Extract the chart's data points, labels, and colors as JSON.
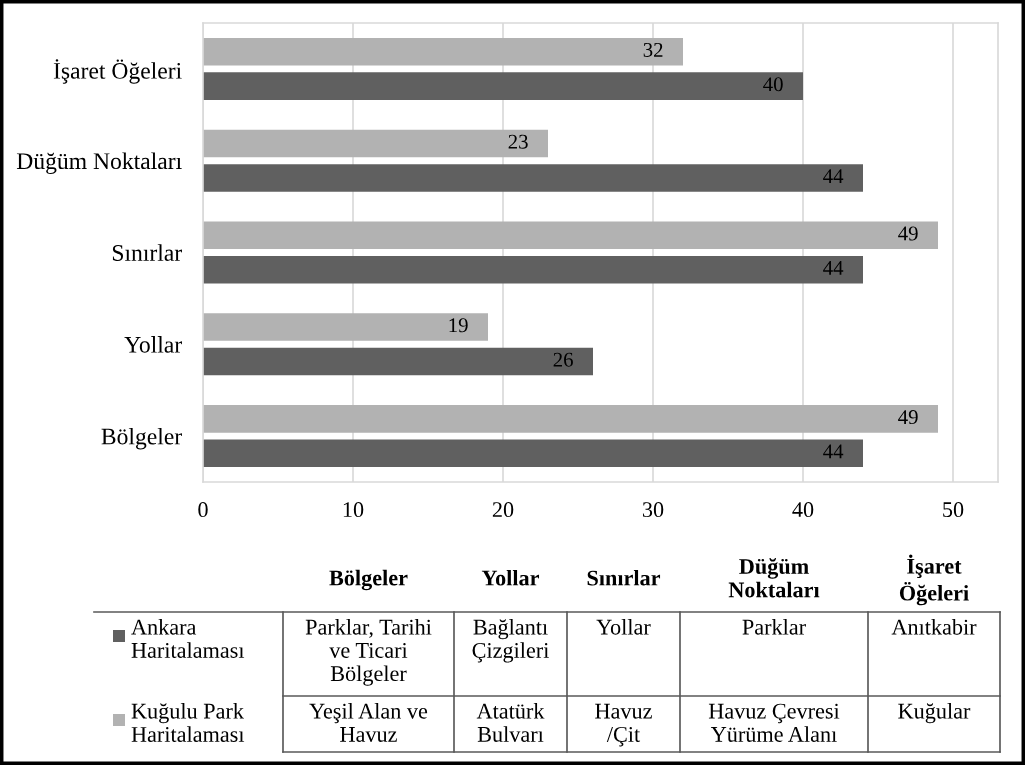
{
  "chart_data": {
    "type": "bar",
    "orientation": "horizontal",
    "categories": [
      "İşaret Öğeleri",
      "Düğüm Noktaları",
      "Sınırlar",
      "Yollar",
      "Bölgeler"
    ],
    "series": [
      {
        "name": "Ankara Haritalaması",
        "color": "#606060",
        "values": [
          40,
          44,
          44,
          26,
          44
        ]
      },
      {
        "name": "Kuğulu Park Haritalaması",
        "color": "#b2b2b2",
        "values": [
          32,
          23,
          49,
          19,
          49
        ]
      }
    ],
    "xlim": [
      0,
      53
    ],
    "xticks": [
      0,
      10,
      20,
      30,
      40,
      50
    ],
    "grid": "x",
    "data_labels": true,
    "legend": "bottom",
    "annotations": [
      "Parklar, Tarihi\nve Ticari\nBölgeler",
      "Bağlantı\nÇizgileri",
      "Yollar",
      "Parklar",
      "Anıtkabir",
      "Yeşil Alan ve\nHavuz",
      "Atatürk\nBulvarı",
      "Havuz\n/Çit",
      "Havuz Çevresi\nYürüme Alanı",
      "Kuğular"
    ]
  }
}
